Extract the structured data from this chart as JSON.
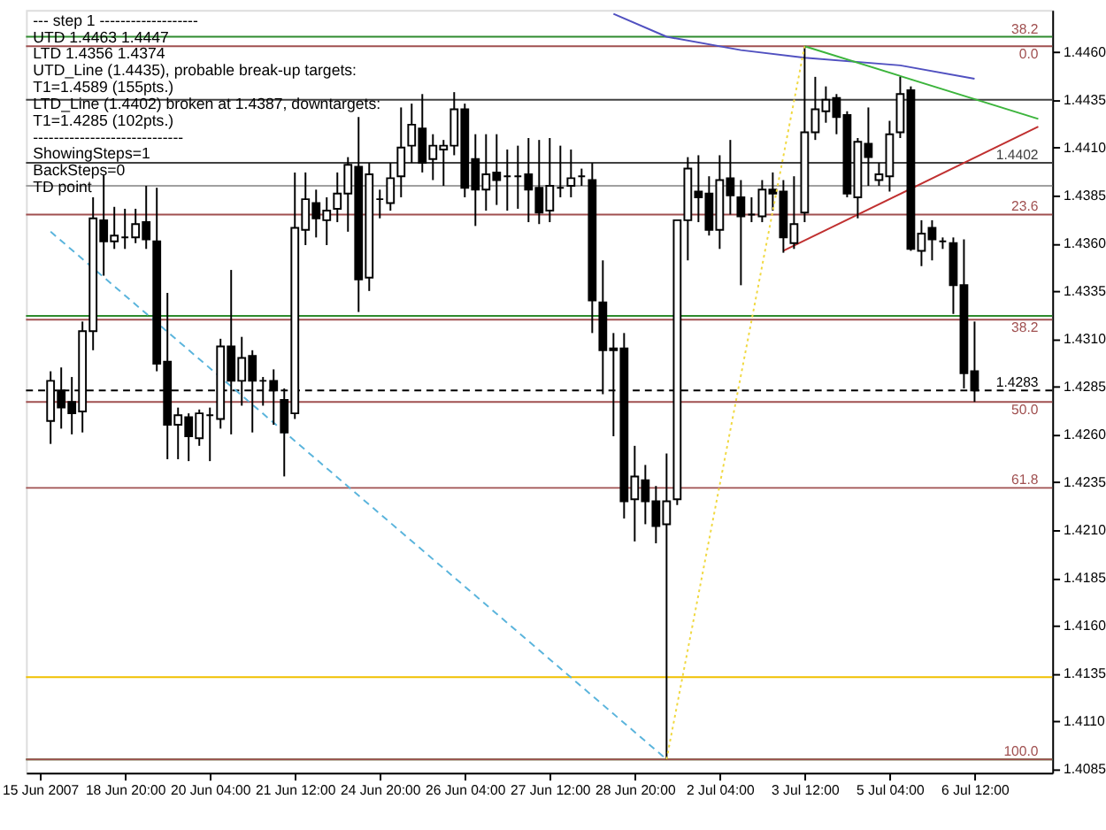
{
  "chart_data": {
    "type": "candlestick",
    "color": "#000000",
    "categories": [
      "15 Jun 2007",
      null,
      null,
      null,
      null,
      null,
      null,
      null,
      "18 Jun 20:00",
      null,
      null,
      null,
      null,
      null,
      null,
      null,
      "20 Jun 04:00",
      null,
      null,
      null,
      null,
      null,
      null,
      null,
      "21 Jun 12:00",
      null,
      null,
      null,
      null,
      null,
      null,
      null,
      "24 Jun 20:00",
      null,
      null,
      null,
      null,
      null,
      null,
      null,
      "26 Jun 04:00",
      null,
      null,
      null,
      null,
      null,
      null,
      null,
      "27 Jun 12:00",
      null,
      null,
      null,
      null,
      null,
      null,
      null,
      "28 Jun 20:00",
      null,
      null,
      null,
      null,
      null,
      null,
      null,
      "2 Jul 04:00",
      null,
      null,
      null,
      null,
      null,
      null,
      null,
      "3 Jul 12:00",
      null,
      null,
      null,
      null,
      null,
      null,
      null,
      "5 Jul 04:00",
      null,
      null,
      null,
      null,
      null,
      null,
      null,
      "6 Jul 12:00",
      null,
      null,
      null,
      null,
      null,
      null
    ],
    "ohlc": [
      null,
      [
        1.4267,
        1.4293,
        1.4255,
        1.4288
      ],
      [
        1.4283,
        1.4295,
        1.4263,
        1.4274
      ],
      [
        1.4277,
        1.429,
        1.426,
        1.4271
      ],
      [
        1.4272,
        1.4319,
        1.4261,
        1.4314
      ],
      [
        1.4314,
        1.4384,
        1.4304,
        1.4373
      ],
      [
        1.4372,
        1.4396,
        1.4343,
        1.4361
      ],
      [
        1.4361,
        1.4379,
        1.4357,
        1.4364
      ],
      [
        1.4363,
        1.4378,
        1.4357,
        1.4363
      ],
      [
        1.4363,
        1.4378,
        1.436,
        1.437
      ],
      [
        1.4371,
        1.439,
        1.4357,
        1.4362
      ],
      [
        1.4361,
        1.4389,
        1.4293,
        1.4297
      ],
      [
        1.4298,
        1.4334,
        1.4247,
        1.4265
      ],
      [
        1.4265,
        1.4274,
        1.4247,
        1.427
      ],
      [
        1.4269,
        1.4271,
        1.4246,
        1.4259
      ],
      [
        1.4258,
        1.4273,
        1.4254,
        1.4271
      ],
      [
        1.427,
        1.4274,
        1.4246,
        1.427
      ],
      [
        1.4268,
        1.431,
        1.4263,
        1.4306
      ],
      [
        1.4306,
        1.4346,
        1.426,
        1.4288
      ],
      [
        1.4288,
        1.4311,
        1.4275,
        1.43
      ],
      [
        1.4301,
        1.4304,
        1.4261,
        1.4288
      ],
      [
        1.4288,
        1.429,
        1.4275,
        1.4288
      ],
      [
        1.4288,
        1.4294,
        1.4265,
        1.4283
      ],
      [
        1.4278,
        1.4284,
        1.4238,
        1.4261
      ],
      [
        1.4271,
        1.4397,
        1.4268,
        1.4368
      ],
      [
        1.4367,
        1.4397,
        1.4359,
        1.4383
      ],
      [
        1.4381,
        1.4388,
        1.4363,
        1.4373
      ],
      [
        1.4372,
        1.4384,
        1.4359,
        1.4377
      ],
      [
        1.4378,
        1.4397,
        1.4371,
        1.4386
      ],
      [
        1.4386,
        1.4405,
        1.4366,
        1.4401
      ],
      [
        1.44,
        1.4426,
        1.4324,
        1.4341
      ],
      [
        1.4342,
        1.4402,
        1.4335,
        1.4396
      ],
      [
        1.4383,
        1.4388,
        1.4373,
        1.4383
      ],
      [
        1.4381,
        1.4402,
        1.4377,
        1.4394
      ],
      [
        1.4395,
        1.4431,
        1.4384,
        1.441
      ],
      [
        1.4411,
        1.4433,
        1.4402,
        1.4422
      ],
      [
        1.442,
        1.4438,
        1.4397,
        1.4402
      ],
      [
        1.4404,
        1.4417,
        1.4393,
        1.4411
      ],
      [
        1.4409,
        1.4414,
        1.439,
        1.4411
      ],
      [
        1.4411,
        1.4439,
        1.4406,
        1.443
      ],
      [
        1.443,
        1.4433,
        1.4384,
        1.4389
      ],
      [
        1.4404,
        1.4417,
        1.4369,
        1.4388
      ],
      [
        1.4388,
        1.4417,
        1.4377,
        1.4396
      ],
      [
        1.4397,
        1.4417,
        1.438,
        1.4393
      ],
      [
        1.4395,
        1.4409,
        1.4377,
        1.4395
      ],
      [
        1.4395,
        1.4411,
        1.4378,
        1.4395
      ],
      [
        1.4396,
        1.4415,
        1.4371,
        1.4388
      ],
      [
        1.4389,
        1.4414,
        1.437,
        1.4376
      ],
      [
        1.4377,
        1.4415,
        1.4371,
        1.439
      ],
      [
        1.4389,
        1.4411,
        1.4384,
        1.4389
      ],
      [
        1.439,
        1.4409,
        1.4384,
        1.4394
      ],
      [
        1.4395,
        1.4399,
        1.439,
        1.4395
      ],
      [
        1.4393,
        1.4402,
        1.4313,
        1.433
      ],
      [
        1.4329,
        1.4351,
        1.4281,
        1.4304
      ],
      [
        1.4305,
        1.4313,
        1.4259,
        1.4304
      ],
      [
        1.4305,
        1.4313,
        1.4216,
        1.4225
      ],
      [
        1.4226,
        1.4254,
        1.4204,
        1.4238
      ],
      [
        1.4236,
        1.4244,
        1.4213,
        1.4225
      ],
      [
        1.4225,
        1.4233,
        1.4203,
        1.4212
      ],
      [
        1.4213,
        1.425,
        1.409,
        1.4225
      ],
      [
        1.4226,
        1.4372,
        1.4223,
        1.4372
      ],
      [
        1.4372,
        1.4405,
        1.4351,
        1.4399
      ],
      [
        1.4387,
        1.4406,
        1.4371,
        1.4384
      ],
      [
        1.4386,
        1.4395,
        1.4364,
        1.4367
      ],
      [
        1.4367,
        1.4406,
        1.4357,
        1.4393
      ],
      [
        1.4394,
        1.4414,
        1.4375,
        1.4385
      ],
      [
        1.4384,
        1.4393,
        1.4338,
        1.4374
      ],
      [
        1.4375,
        1.4384,
        1.4371,
        1.4375
      ],
      [
        1.4374,
        1.4393,
        1.4371,
        1.4388
      ],
      [
        1.4388,
        1.4397,
        1.4377,
        1.4386
      ],
      [
        1.4387,
        1.4393,
        1.4355,
        1.4363
      ],
      [
        1.436,
        1.4395,
        1.4357,
        1.437
      ],
      [
        1.4376,
        1.4463,
        1.4371,
        1.4418
      ],
      [
        1.4418,
        1.4447,
        1.4414,
        1.443
      ],
      [
        1.4429,
        1.4442,
        1.4423,
        1.4435
      ],
      [
        1.4436,
        1.4438,
        1.4417,
        1.4426
      ],
      [
        1.4427,
        1.4429,
        1.4384,
        1.4386
      ],
      [
        1.4384,
        1.4415,
        1.4373,
        1.4413
      ],
      [
        1.4412,
        1.4431,
        1.439,
        1.4405
      ],
      [
        1.4393,
        1.4402,
        1.439,
        1.4396
      ],
      [
        1.4395,
        1.4424,
        1.4387,
        1.4417
      ],
      [
        1.4418,
        1.4447,
        1.4415,
        1.4438
      ],
      [
        1.444,
        1.4442,
        1.4356,
        1.4357
      ],
      [
        1.4356,
        1.4372,
        1.4348,
        1.4365
      ],
      [
        1.4368,
        1.4372,
        1.4351,
        1.4362
      ],
      [
        1.4361,
        1.4363,
        1.4357,
        1.4361
      ],
      [
        1.436,
        1.4363,
        1.4323,
        1.4338
      ],
      [
        1.4338,
        1.4362,
        1.4284,
        1.4292
      ],
      [
        1.4293,
        1.4319,
        1.4277,
        1.4283
      ],
      null,
      null,
      null,
      null,
      null,
      null
    ],
    "series": [
      {
        "type": "line",
        "color": "#5050c0",
        "line_style": "solid",
        "values": [
          null,
          null,
          null,
          null,
          null,
          null,
          null,
          null,
          null,
          null,
          null,
          null,
          null,
          null,
          null,
          null,
          null,
          null,
          null,
          null,
          null,
          null,
          null,
          null,
          null,
          null,
          null,
          null,
          null,
          null,
          null,
          null,
          null,
          null,
          null,
          null,
          null,
          null,
          null,
          null,
          null,
          null,
          null,
          null,
          null,
          null,
          null,
          null,
          null,
          null,
          null,
          null,
          null,
          null,
          1.448,
          null,
          null,
          null,
          null,
          1.4468,
          null,
          null,
          null,
          null,
          null,
          null,
          1.4461,
          null,
          null,
          null,
          null,
          null,
          1.4457,
          null,
          null,
          null,
          null,
          null,
          null,
          null,
          null,
          1.4453,
          null,
          null,
          null,
          null,
          null,
          null,
          1.4446,
          null,
          null,
          null,
          null,
          null,
          null
        ]
      },
      {
        "type": "line",
        "color": "#3cb43c",
        "line_style": "solid",
        "values": [
          null,
          null,
          null,
          null,
          null,
          null,
          null,
          null,
          null,
          null,
          null,
          null,
          null,
          null,
          null,
          null,
          null,
          null,
          null,
          null,
          null,
          null,
          null,
          null,
          null,
          null,
          null,
          null,
          null,
          null,
          null,
          null,
          null,
          null,
          null,
          null,
          null,
          null,
          null,
          null,
          null,
          null,
          null,
          null,
          null,
          null,
          null,
          null,
          null,
          null,
          null,
          null,
          null,
          null,
          null,
          null,
          null,
          null,
          null,
          null,
          null,
          null,
          null,
          null,
          null,
          null,
          null,
          null,
          null,
          null,
          null,
          null,
          1.4463,
          null,
          null,
          null,
          null,
          null,
          null,
          null,
          null,
          null,
          null,
          null,
          null,
          null,
          null,
          null,
          null,
          null,
          null,
          null,
          null,
          null,
          1.4425
        ]
      },
      {
        "type": "line",
        "color": "#c03030",
        "line_style": "solid",
        "values": [
          null,
          null,
          null,
          null,
          null,
          null,
          null,
          null,
          null,
          null,
          null,
          null,
          null,
          null,
          null,
          null,
          null,
          null,
          null,
          null,
          null,
          null,
          null,
          null,
          null,
          null,
          null,
          null,
          null,
          null,
          null,
          null,
          null,
          null,
          null,
          null,
          null,
          null,
          null,
          null,
          null,
          null,
          null,
          null,
          null,
          null,
          null,
          null,
          null,
          null,
          null,
          null,
          null,
          null,
          null,
          null,
          null,
          null,
          null,
          null,
          null,
          null,
          null,
          null,
          null,
          null,
          null,
          null,
          null,
          null,
          1.4356,
          null,
          null,
          null,
          null,
          null,
          null,
          null,
          null,
          null,
          null,
          null,
          null,
          null,
          null,
          null,
          null,
          null,
          null,
          null,
          null,
          null,
          null,
          null,
          1.4421
        ]
      },
      {
        "type": "line",
        "color": "#f0d840",
        "line_style": "dotted",
        "values": [
          null,
          null,
          null,
          null,
          null,
          null,
          null,
          null,
          null,
          null,
          null,
          null,
          null,
          null,
          null,
          null,
          null,
          null,
          null,
          null,
          null,
          null,
          null,
          null,
          null,
          null,
          null,
          null,
          null,
          null,
          null,
          null,
          null,
          null,
          null,
          null,
          null,
          null,
          null,
          null,
          null,
          null,
          null,
          null,
          null,
          null,
          null,
          null,
          null,
          null,
          null,
          null,
          null,
          null,
          null,
          null,
          null,
          null,
          null,
          1.409,
          null,
          null,
          null,
          null,
          null,
          null,
          null,
          null,
          null,
          null,
          null,
          null,
          1.4463,
          null,
          null,
          null,
          null,
          null,
          null,
          null,
          null,
          null,
          null,
          null,
          null,
          null,
          null,
          null,
          null,
          null,
          null,
          null,
          null,
          null,
          null
        ]
      },
      {
        "type": "line",
        "color": "#5ab4dc",
        "line_style": "dashed",
        "values": [
          null,
          1.4366,
          null,
          null,
          null,
          null,
          null,
          null,
          null,
          null,
          null,
          null,
          null,
          null,
          null,
          null,
          null,
          null,
          null,
          null,
          null,
          null,
          null,
          null,
          null,
          null,
          null,
          null,
          null,
          null,
          null,
          null,
          null,
          null,
          null,
          null,
          null,
          null,
          null,
          null,
          null,
          null,
          null,
          null,
          null,
          null,
          null,
          null,
          null,
          null,
          null,
          null,
          null,
          null,
          null,
          null,
          null,
          null,
          null,
          1.409,
          null,
          null,
          null,
          null,
          null,
          null,
          null,
          null,
          null,
          null,
          null,
          null,
          null,
          null,
          null,
          null,
          null,
          null,
          null,
          null,
          null,
          null,
          null,
          null,
          null,
          null,
          null,
          null,
          null,
          null,
          null,
          null,
          null,
          null,
          null
        ]
      }
    ],
    "ref_lines": [
      {
        "axis": "y",
        "value": 1.4468,
        "color": "#2e8b2e"
      },
      {
        "axis": "y",
        "value": 1.4463,
        "color": "#a05050"
      },
      {
        "axis": "y",
        "value": 1.4435,
        "color": "#404040"
      },
      {
        "axis": "y",
        "value": 1.4402,
        "label": "1.4402",
        "color": "#404040"
      },
      {
        "axis": "y",
        "value": 1.439,
        "color": "#a0a0a0"
      },
      {
        "axis": "y",
        "value": 1.4375,
        "color": "#a05050"
      },
      {
        "axis": "y",
        "value": 1.4322,
        "color": "#2e8b2e"
      },
      {
        "axis": "y",
        "value": 1.432,
        "color": "#a05050"
      },
      {
        "axis": "y",
        "value": 1.4283,
        "label": "1.4283",
        "color": "#000000",
        "line_style": "dashed"
      },
      {
        "axis": "y",
        "value": 1.4277,
        "color": "#a05050"
      },
      {
        "axis": "y",
        "value": 1.4232,
        "color": "#a05050"
      },
      {
        "axis": "y",
        "value": 1.4133,
        "color": "#f0c000"
      },
      {
        "axis": "y",
        "value": 1.409,
        "color": "#2e8b2e"
      },
      {
        "axis": "y",
        "value": 1.409,
        "color": "#a05050"
      }
    ],
    "annotations": [
      "---   step 1   -------------------",
      "UTD 1.4463  1.4447",
      "LTD  1.4356  1.4374",
      "UTD_Line (1.4435), probable break-up targets:",
      "T1=1.4589 (155pts.)",
      "LTD_Line (1.4402) broken at 1.4387, downtargets:",
      "T1=1.4285 (102pts.)",
      "-----------------------------",
      "ShowingSteps=1",
      "BackSteps=0",
      "TD point",
      {
        "text": "38.2",
        "y": 1.4468
      },
      {
        "text": "0.0",
        "y": 1.4463
      },
      {
        "text": "23.6",
        "y": 1.4375
      },
      {
        "text": "38.2",
        "y": 1.432
      },
      {
        "text": "50.0",
        "y": 1.4277
      },
      {
        "text": "61.8",
        "y": 1.4232
      },
      {
        "text": "100.0",
        "y": 1.409
      }
    ],
    "ylim": [
      1.4083,
      1.4482
    ],
    "yticks": [
      {
        "value": 1.4085,
        "label": "1.4085"
      },
      {
        "value": 1.411,
        "label": "1.4110"
      },
      {
        "value": 1.4135,
        "label": "1.4135"
      },
      {
        "value": 1.416,
        "label": "1.4160"
      },
      {
        "value": 1.4185,
        "label": "1.4185"
      },
      {
        "value": 1.421,
        "label": "1.4210"
      },
      {
        "value": 1.4235,
        "label": "1.4235"
      },
      {
        "value": 1.426,
        "label": "1.4260"
      },
      {
        "value": 1.4285,
        "label": "1.4285"
      },
      {
        "value": 1.431,
        "label": "1.4310"
      },
      {
        "value": 1.4335,
        "label": "1.4335"
      },
      {
        "value": 1.436,
        "label": "1.4360"
      },
      {
        "value": 1.4385,
        "label": "1.4385"
      },
      {
        "value": 1.441,
        "label": "1.4410"
      },
      {
        "value": 1.4435,
        "label": "1.4435"
      },
      {
        "value": 1.446,
        "label": "1.4460"
      }
    ]
  }
}
